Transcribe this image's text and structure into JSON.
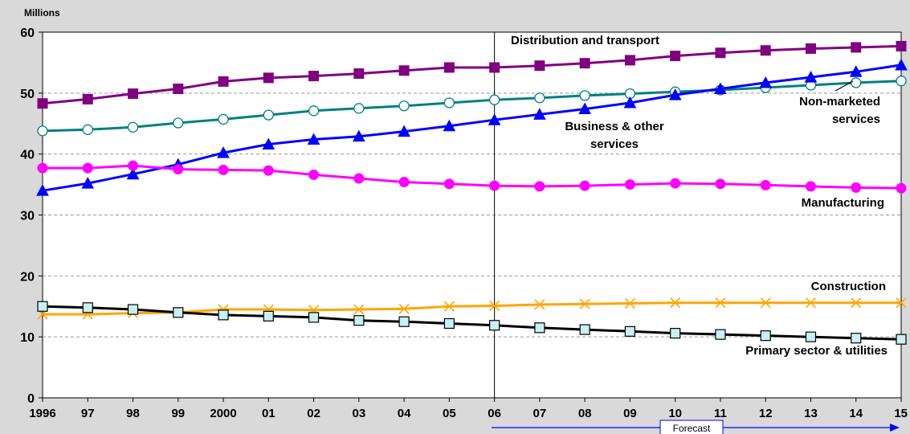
{
  "chart_data": {
    "type": "line",
    "ylabel": "Millions",
    "ylim": [
      0,
      60
    ],
    "yticks": [
      0,
      10,
      20,
      30,
      40,
      50,
      60
    ],
    "grid": "horizontal dashed",
    "categories": [
      "1996",
      "97",
      "98",
      "99",
      "2000",
      "01",
      "02",
      "03",
      "04",
      "05",
      "06",
      "07",
      "08",
      "09",
      "10",
      "11",
      "12",
      "13",
      "14",
      "15"
    ],
    "forecast": {
      "label": "Forecast",
      "start": "06"
    },
    "series": [
      {
        "name": "Distribution and transport",
        "color": "#800080",
        "marker": "square",
        "values": [
          48.3,
          49.0,
          49.9,
          50.7,
          51.9,
          52.5,
          52.8,
          53.2,
          53.7,
          54.2,
          54.2,
          54.5,
          54.9,
          55.4,
          56.1,
          56.6,
          57.0,
          57.3,
          57.5,
          57.7
        ]
      },
      {
        "name": "Non-marketed services",
        "color": "#008080",
        "marker": "circle-open",
        "values": [
          43.8,
          44.0,
          44.4,
          45.1,
          45.7,
          46.4,
          47.1,
          47.5,
          47.9,
          48.4,
          48.9,
          49.2,
          49.6,
          49.9,
          50.2,
          50.5,
          50.9,
          51.3,
          51.7,
          52.0
        ]
      },
      {
        "name": "Business & other services",
        "color": "#0000ff",
        "marker": "triangle",
        "values": [
          34.0,
          35.2,
          36.7,
          38.3,
          40.2,
          41.6,
          42.4,
          42.9,
          43.7,
          44.6,
          45.6,
          46.5,
          47.4,
          48.4,
          49.7,
          50.7,
          51.7,
          52.6,
          53.5,
          54.6
        ]
      },
      {
        "name": "Manufacturing",
        "color": "#ff00ff",
        "marker": "circle",
        "values": [
          37.7,
          37.7,
          38.1,
          37.5,
          37.4,
          37.3,
          36.6,
          36.0,
          35.4,
          35.1,
          34.8,
          34.7,
          34.8,
          35.0,
          35.2,
          35.1,
          34.9,
          34.7,
          34.5,
          34.4
        ]
      },
      {
        "name": "Construction",
        "color": "#ffa500",
        "marker": "x",
        "values": [
          13.7,
          13.7,
          13.9,
          14.0,
          14.5,
          14.5,
          14.4,
          14.5,
          14.6,
          15.0,
          15.1,
          15.3,
          15.4,
          15.5,
          15.6,
          15.6,
          15.6,
          15.6,
          15.6,
          15.6
        ]
      },
      {
        "name": "Primary sector & utilities",
        "color": "#000000",
        "marker": "square-open",
        "values": [
          15.0,
          14.8,
          14.5,
          14.0,
          13.6,
          13.4,
          13.2,
          12.7,
          12.5,
          12.2,
          11.9,
          11.5,
          11.2,
          10.9,
          10.6,
          10.4,
          10.2,
          10.0,
          9.8,
          9.6
        ]
      }
    ]
  }
}
